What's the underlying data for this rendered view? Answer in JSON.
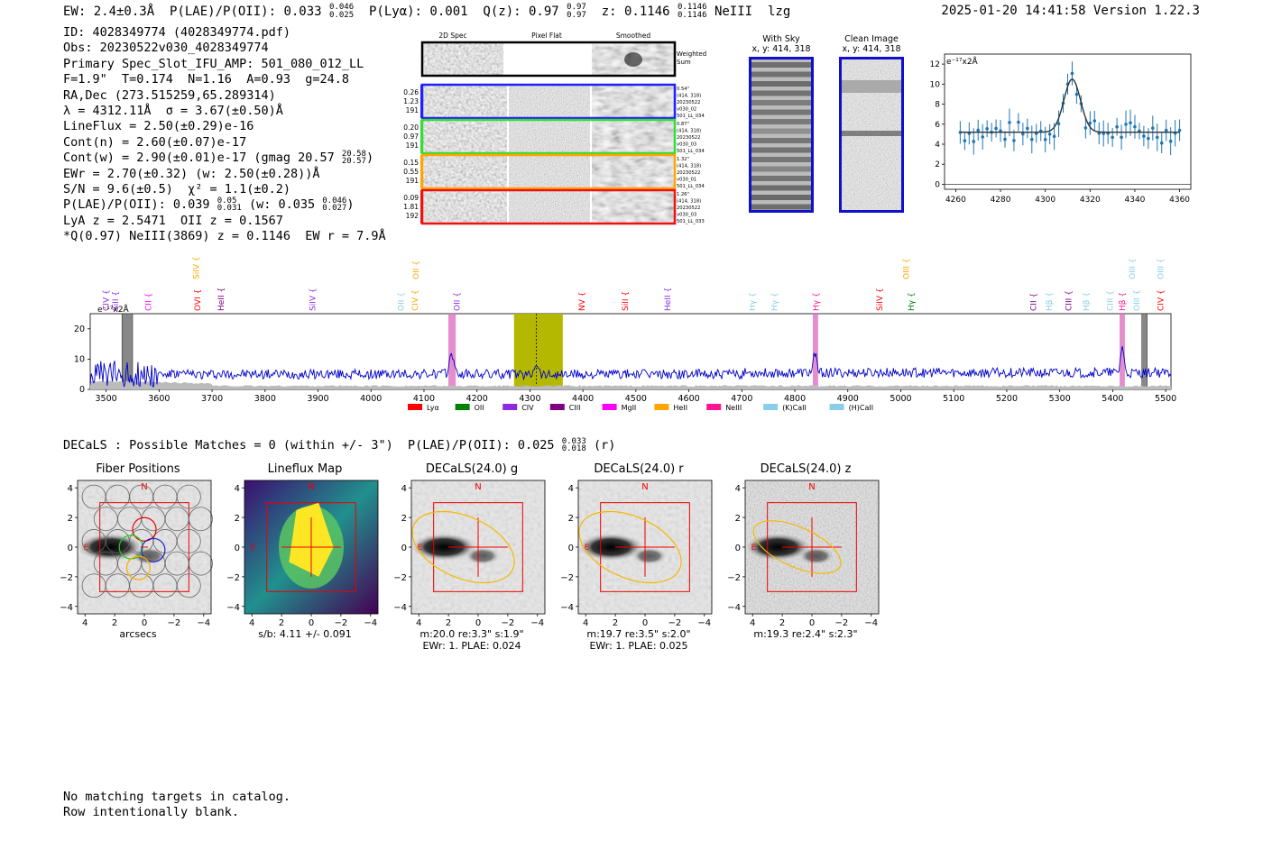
{
  "header": {
    "ew_label": "EW: 2.4±0.3Å",
    "plae_label": "P(LAE)/P(OII): 0.033",
    "plae_hi": "0.046",
    "plae_lo": "0.025",
    "plya": "P(Lyα): 0.001",
    "q_label": "Q(z): 0.97",
    "q_hi": "0.97",
    "q_lo": "0.97",
    "z_label": "z: 0.1146",
    "z_hi": "0.1146",
    "z_lo": "0.1146",
    "line": "NeIII",
    "flag": "lzg",
    "timestamp": "2025-01-20 14:41:58",
    "version": "Version 1.22.3"
  },
  "info": {
    "id": "ID: 4028349774 (4028349774.pdf)",
    "obs": "Obs: 20230522v030_4028349774",
    "primary": "Primary Spec_Slot_IFU_AMP: 501_080_012_LL",
    "fibers": "F=1.9\"  T=0.174  N=1.16  A=0.93  g=24.8",
    "radec": "RA,Dec (273.515259,65.289314)",
    "lambda": "λ = 4312.11Å  σ = 3.67(±0.50)Å",
    "lineflux": "LineFlux = 2.50(±0.29)e-16",
    "contn": "Cont(n) = 2.60(±0.07)e-17",
    "contw": "Cont(w) = 2.90(±0.01)e-17 (gmag 20.57",
    "gmag_hi": "20.58",
    "gmag_lo": "20.57",
    "ewr": "EWr = 2.70(±0.32) (w: 2.50(±0.28))Å",
    "sn": "S/N = 9.6(±0.5)  χ² = 1.1(±0.2)",
    "plae": "P(LAE)/P(OII): 0.039",
    "plae_hi": "0.05",
    "plae_lo": "0.031",
    "plae_w": "(w: 0.035",
    "plae_w_hi": "0.046",
    "plae_w_lo": "0.027",
    "lya": "LyA z = 2.5471  OII z = 0.1567",
    "q_line": "*Q(0.97) NeIII(3869) z = 0.1146  EW r = 7.9Å"
  },
  "cutouts": {
    "col_headers": [
      "2D Spec",
      "Pixel Flat",
      "Smoothed"
    ],
    "weighted_label": "Weighted Sum",
    "rows": [
      {
        "stats": [
          "0.26",
          "1.23",
          "191"
        ],
        "meta": [
          "0.54\"",
          "(414, 318)",
          "20230522",
          "v030_02",
          "501_LL_034"
        ],
        "color": "#1f1fff"
      },
      {
        "stats": [
          "0.20",
          "0.97",
          "191"
        ],
        "meta": [
          "0.87\"",
          "(414, 318)",
          "20230522",
          "v030_03",
          "501_LL_034"
        ],
        "color": "#33dd33"
      },
      {
        "stats": [
          "0.15",
          "0.55",
          "191"
        ],
        "meta": [
          "1.32\"",
          "(414, 318)",
          "20230522",
          "v030_01",
          "501_LL_034"
        ],
        "color": "#ffa500"
      },
      {
        "stats": [
          "0.09",
          "1.81",
          "192"
        ],
        "meta": [
          "1.26\"",
          "(414, 318)",
          "20230522",
          "v030_03",
          "501_LL_033"
        ],
        "color": "#e11"
      }
    ]
  },
  "sky": {
    "with_sky_title": "With Sky",
    "with_sky_xy": "x, y: 414, 318",
    "clean_title": "Clean Image",
    "clean_xy": "x, y: 414, 318"
  },
  "fit_plot": {
    "ylabel": "e⁻¹⁷x2Å",
    "xticks": [
      "4260",
      "4280",
      "4300",
      "4320",
      "4340",
      "4360"
    ],
    "yticks": [
      "0",
      "2",
      "4",
      "6",
      "8",
      "10",
      "12"
    ]
  },
  "spectrum": {
    "ylabel": "e⁻¹⁷x2Å",
    "xticks": [
      "3500",
      "3600",
      "3700",
      "3800",
      "3900",
      "4000",
      "4100",
      "4200",
      "4300",
      "4400",
      "4500",
      "4600",
      "4700",
      "4800",
      "4900",
      "5000",
      "5100",
      "5200",
      "5300",
      "5400",
      "5500"
    ],
    "yticks": [
      "0",
      "10",
      "20"
    ],
    "legend": [
      {
        "label": "Lyα",
        "color": "#ff0000"
      },
      {
        "label": "OII",
        "color": "#008000"
      },
      {
        "label": "CIV",
        "color": "#8a2be2"
      },
      {
        "label": "CIII",
        "color": "#800080"
      },
      {
        "label": "MgII",
        "color": "#ff00ff"
      },
      {
        "label": "HeII",
        "color": "#ffa500"
      },
      {
        "label": "NeIII",
        "color": "#ff1493"
      },
      {
        "label": "(K)CaII",
        "color": "#87ceeb"
      },
      {
        "label": "(H)CaII",
        "color": "#87ceeb"
      }
    ],
    "line_labels": [
      {
        "text": "CIV",
        "wave": 3500,
        "color": "#8a2be2",
        "row": 0
      },
      {
        "text": "SiII",
        "wave": 3518,
        "color": "#8a2be2",
        "row": 0
      },
      {
        "text": "CII",
        "wave": 3580,
        "color": "#ff00ff",
        "row": 0
      },
      {
        "text": "OVI",
        "wave": 3673,
        "color": "#ff0000",
        "row": 0
      },
      {
        "text": "HeII",
        "wave": 3717,
        "color": "#800080",
        "row": 0
      },
      {
        "text": "SiIV",
        "wave": 3890,
        "color": "#8a2be2",
        "row": 0
      },
      {
        "text": "OII",
        "wave": 4057,
        "color": "#87ceeb",
        "row": 0
      },
      {
        "text": "CIV",
        "wave": 4083,
        "color": "#ffa500",
        "row": 0
      },
      {
        "text": "OII",
        "wave": 4162,
        "color": "#8a2be2",
        "row": 0
      },
      {
        "text": "NV",
        "wave": 4398,
        "color": "#ff0000",
        "row": 0
      },
      {
        "text": "SiII",
        "wave": 4480,
        "color": "#ff0000",
        "row": 0
      },
      {
        "text": "HeII",
        "wave": 4560,
        "color": "#8a2be2",
        "row": 0
      },
      {
        "text": "Hγ",
        "wave": 4720,
        "color": "#87ceeb",
        "row": 0
      },
      {
        "text": "Hγ",
        "wave": 4762,
        "color": "#87ceeb",
        "row": 0
      },
      {
        "text": "Hγ",
        "wave": 4840,
        "color": "#ff1493",
        "row": 0
      },
      {
        "text": "SiIV",
        "wave": 4960,
        "color": "#ff0000",
        "row": 0
      },
      {
        "text": "Hγ",
        "wave": 5020,
        "color": "#008000",
        "row": 0
      },
      {
        "text": "CII",
        "wave": 5250,
        "color": "#800080",
        "row": 0
      },
      {
        "text": "Hβ",
        "wave": 5280,
        "color": "#87ceeb",
        "row": 0
      },
      {
        "text": "CIII",
        "wave": 5317,
        "color": "#800080",
        "row": 0
      },
      {
        "text": "Hβ",
        "wave": 5350,
        "color": "#87ceeb",
        "row": 0
      },
      {
        "text": "CIII",
        "wave": 5395,
        "color": "#87ceeb",
        "row": 0
      },
      {
        "text": "Hβ",
        "wave": 5418,
        "color": "#ff1493",
        "row": 0
      },
      {
        "text": "OIII",
        "wave": 5445,
        "color": "#87ceeb",
        "row": 0
      },
      {
        "text": "CIV",
        "wave": 5490,
        "color": "#ff0000",
        "row": 0
      },
      {
        "text": "SiIV",
        "wave": 3670,
        "color": "#ffa500",
        "row": 1
      },
      {
        "text": "OII",
        "wave": 4085,
        "color": "#ffa500",
        "row": 1
      },
      {
        "text": "OIII",
        "wave": 5010,
        "color": "#ffa500",
        "row": 1
      },
      {
        "text": "OIII",
        "wave": 5437,
        "color": "#87ceeb",
        "row": 1
      },
      {
        "text": "OIII",
        "wave": 5490,
        "color": "#87ceeb",
        "row": 1
      }
    ]
  },
  "decals_line": {
    "text": "DECaLS : Possible Matches = 0 (within +/- 3\")  P(LAE)/P(OII): 0.025",
    "hi": "0.033",
    "lo": "0.018",
    "band": "(r)"
  },
  "panels": [
    {
      "title": "Fiber Positions",
      "captions": [
        "arcsecs"
      ]
    },
    {
      "title": "Lineflux Map",
      "captions": [
        "s/b: 4.11 +/- 0.091"
      ]
    },
    {
      "title": "DECaLS(24.0) g",
      "captions": [
        "m:20.0  re:3.3\"  s:1.9\"",
        "EWr: 1. PLAE: 0.024"
      ]
    },
    {
      "title": "DECaLS(24.0) r",
      "captions": [
        "m:19.7  re:3.5\"  s:2.0\"",
        "EWr: 1. PLAE: 0.025"
      ]
    },
    {
      "title": "DECaLS(24.0) z",
      "captions": [
        "m:19.3  re:2.4\"  s:2.3\""
      ]
    }
  ],
  "panel_axes": {
    "ticks": [
      "4",
      "2",
      "0",
      "−2",
      "−4"
    ],
    "north": "N",
    "east": "E"
  },
  "footer": {
    "line1": "No matching targets in catalog.",
    "line2": "Row intentionally blank."
  }
}
